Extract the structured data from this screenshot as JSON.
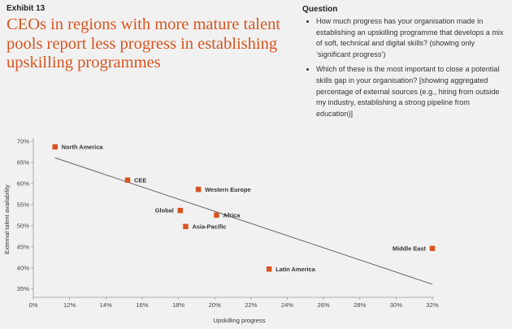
{
  "header": {
    "exhibit": "Exhibit 13",
    "headline": "CEOs in regions with more mature talent pools report less progress in establishing upskilling programmes"
  },
  "question": {
    "title": "Question",
    "items": [
      "How much progress has your organisation made in establishing an upskilling programme that develops a mix of soft, technical and digital skills? (showing only ‘significant progress’)",
      "Which of these is the most important to close a potential skills gap in your organisation? [showing aggregated percentage of external sources (e.g., hiring from outside my industry, establishing a strong pipeline from education)]"
    ]
  },
  "colors": {
    "marker": "#d9541e",
    "trend": "#666666",
    "background": "#f1f1f1"
  },
  "chart_data": {
    "type": "scatter",
    "xlabel": "Upskilling progress",
    "ylabel": "External talent availability",
    "xlim": [
      0.1,
      0.32
    ],
    "ylim": [
      0.33,
      0.7
    ],
    "x_ticks": [
      {
        "value": 0.1,
        "label": "0%"
      },
      {
        "value": 0.12,
        "label": "12%"
      },
      {
        "value": 0.14,
        "label": "14%"
      },
      {
        "value": 0.16,
        "label": "16%"
      },
      {
        "value": 0.18,
        "label": "18%"
      },
      {
        "value": 0.2,
        "label": "20%"
      },
      {
        "value": 0.22,
        "label": "22%"
      },
      {
        "value": 0.24,
        "label": "24%"
      },
      {
        "value": 0.26,
        "label": "26%"
      },
      {
        "value": 0.28,
        "label": "28%"
      },
      {
        "value": 0.3,
        "label": "30%"
      },
      {
        "value": 0.32,
        "label": "32%"
      }
    ],
    "y_ticks": [
      {
        "value": 0.35,
        "label": "35%"
      },
      {
        "value": 0.4,
        "label": "40%"
      },
      {
        "value": 0.45,
        "label": "45%"
      },
      {
        "value": 0.5,
        "label": "50%"
      },
      {
        "value": 0.55,
        "label": "55%"
      },
      {
        "value": 0.6,
        "label": "60%"
      },
      {
        "value": 0.65,
        "label": "65%"
      },
      {
        "value": 0.7,
        "label": "70%"
      }
    ],
    "points": [
      {
        "label": "North America",
        "x": 0.112,
        "y": 0.687,
        "label_pos": "right"
      },
      {
        "label": "CEE",
        "x": 0.152,
        "y": 0.608,
        "label_pos": "right"
      },
      {
        "label": "Western Europe",
        "x": 0.191,
        "y": 0.586,
        "label_pos": "right"
      },
      {
        "label": "Global",
        "x": 0.181,
        "y": 0.536,
        "label_pos": "left"
      },
      {
        "label": "Africa",
        "x": 0.201,
        "y": 0.525,
        "label_pos": "right"
      },
      {
        "label": "Asia-Pacific",
        "x": 0.184,
        "y": 0.498,
        "label_pos": "right"
      },
      {
        "label": "Middle East",
        "x": 0.32,
        "y": 0.446,
        "label_pos": "left"
      },
      {
        "label": "Latin America",
        "x": 0.23,
        "y": 0.397,
        "label_pos": "right"
      }
    ],
    "trendline": [
      {
        "x": 0.112,
        "y": 0.661
      },
      {
        "x": 0.32,
        "y": 0.361
      }
    ]
  }
}
